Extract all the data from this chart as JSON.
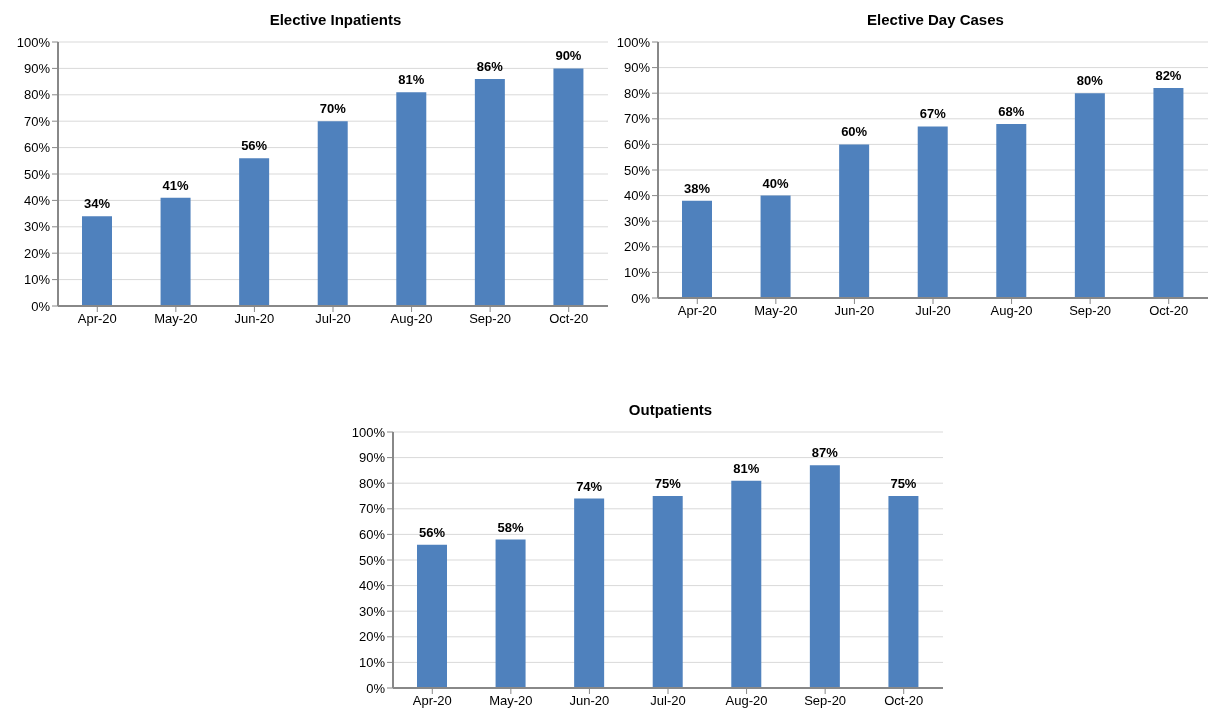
{
  "chart_data": [
    {
      "type": "bar",
      "title": "Elective Inpatients",
      "categories": [
        "Apr-20",
        "May-20",
        "Jun-20",
        "Jul-20",
        "Aug-20",
        "Sep-20",
        "Oct-20"
      ],
      "values": [
        34,
        41,
        56,
        70,
        81,
        86,
        90
      ],
      "value_labels": [
        "34%",
        "41%",
        "56%",
        "70%",
        "81%",
        "86%",
        "90%"
      ],
      "color": "#4f81bd",
      "ylim": [
        0,
        100
      ],
      "yticks": [
        {
          "value": 0,
          "label": "0%"
        },
        {
          "value": 10,
          "label": "10%"
        },
        {
          "value": 20,
          "label": "20%"
        },
        {
          "value": 30,
          "label": "30%"
        },
        {
          "value": 40,
          "label": "40%"
        },
        {
          "value": 50,
          "label": "50%"
        },
        {
          "value": 60,
          "label": "60%"
        },
        {
          "value": 70,
          "label": "70%"
        },
        {
          "value": 80,
          "label": "80%"
        },
        {
          "value": 90,
          "label": "90%"
        },
        {
          "value": 100,
          "label": "100%"
        }
      ],
      "grid": "y"
    },
    {
      "type": "bar",
      "title": "Elective Day Cases",
      "categories": [
        "Apr-20",
        "May-20",
        "Jun-20",
        "Jul-20",
        "Aug-20",
        "Sep-20",
        "Oct-20"
      ],
      "values": [
        38,
        40,
        60,
        67,
        68,
        80,
        82
      ],
      "value_labels": [
        "38%",
        "40%",
        "60%",
        "67%",
        "68%",
        "80%",
        "82%"
      ],
      "color": "#4f81bd",
      "ylim": [
        0,
        100
      ],
      "yticks": [
        {
          "value": 0,
          "label": "0%"
        },
        {
          "value": 10,
          "label": "10%"
        },
        {
          "value": 20,
          "label": "20%"
        },
        {
          "value": 30,
          "label": "30%"
        },
        {
          "value": 40,
          "label": "40%"
        },
        {
          "value": 50,
          "label": "50%"
        },
        {
          "value": 60,
          "label": "60%"
        },
        {
          "value": 70,
          "label": "70%"
        },
        {
          "value": 80,
          "label": "80%"
        },
        {
          "value": 90,
          "label": "90%"
        },
        {
          "value": 100,
          "label": "100%"
        }
      ],
      "grid": "y"
    },
    {
      "type": "bar",
      "title": "Outpatients",
      "categories": [
        "Apr-20",
        "May-20",
        "Jun-20",
        "Jul-20",
        "Aug-20",
        "Sep-20",
        "Oct-20"
      ],
      "values": [
        56,
        58,
        74,
        75,
        81,
        87,
        75
      ],
      "value_labels": [
        "56%",
        "58%",
        "74%",
        "75%",
        "81%",
        "87%",
        "75%"
      ],
      "color": "#4f81bd",
      "ylim": [
        0,
        100
      ],
      "yticks": [
        {
          "value": 0,
          "label": "0%"
        },
        {
          "value": 10,
          "label": "10%"
        },
        {
          "value": 20,
          "label": "20%"
        },
        {
          "value": 30,
          "label": "30%"
        },
        {
          "value": 40,
          "label": "40%"
        },
        {
          "value": 50,
          "label": "50%"
        },
        {
          "value": 60,
          "label": "60%"
        },
        {
          "value": 70,
          "label": "70%"
        },
        {
          "value": 80,
          "label": "80%"
        },
        {
          "value": 90,
          "label": "90%"
        },
        {
          "value": 100,
          "label": "100%"
        }
      ],
      "grid": "y"
    }
  ]
}
